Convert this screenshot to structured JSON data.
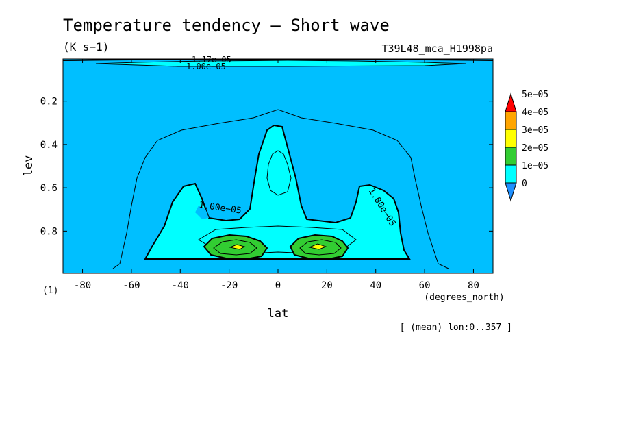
{
  "chart_data": {
    "type": "contour",
    "title": "Temperature tendency — Short wave",
    "subtitle": "(K s−1)",
    "run_label": "T39L48_mca_H1998pa",
    "xlabel": "lat",
    "xunit": "(degrees_north)",
    "ylabel": "lev",
    "yunit": "(1)",
    "xlim": [
      -88,
      88
    ],
    "ylim": [
      0.995,
      0.005
    ],
    "y_axis_inverted": true,
    "x_ticks": [
      -80,
      -60,
      -40,
      -20,
      0,
      20,
      40,
      60,
      80
    ],
    "y_ticks": [
      0.2,
      0.4,
      0.6,
      0.8
    ],
    "colorbar": {
      "levels": [
        0,
        1e-05,
        2e-05,
        3e-05,
        4e-05,
        5e-05
      ],
      "labels": [
        "0",
        "1e−05",
        "2e−05",
        "3e−05",
        "4e−05",
        "5e−05"
      ],
      "colors": [
        "#1e90ff",
        "#00ffff",
        "#32cd32",
        "#ffff00",
        "#ffa500",
        "#ff0000"
      ],
      "background_fill": "#00bfff"
    },
    "contour_labels": [
      {
        "text": "1.00e−05",
        "lat": -22,
        "lev": 0.72
      },
      {
        "text": "1.00e−05",
        "lat": 43,
        "lev": 0.7
      },
      {
        "text": "1.00e−05",
        "lat": -28,
        "lev": 0.03
      },
      {
        "text": "1.17e−05",
        "lat": -25,
        "lev": 0.005
      }
    ],
    "max_region": {
      "value_range": [
        3e-05,
        4e-05
      ],
      "centers": [
        {
          "lat": -17,
          "lev": 0.87
        },
        {
          "lat": 16,
          "lev": 0.87
        }
      ]
    },
    "footer_note": "[ (mean) lon:0..357 ]"
  }
}
